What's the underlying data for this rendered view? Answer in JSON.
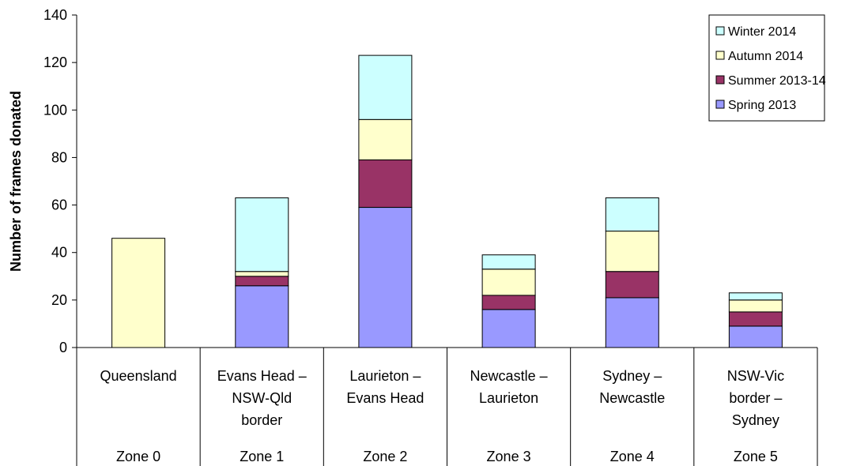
{
  "chart_data": {
    "type": "bar",
    "stacked": true,
    "ylabel": "Number of frames donated",
    "ylim": [
      0,
      140
    ],
    "y_ticks": [
      "0",
      "20",
      "40",
      "60",
      "80",
      "100",
      "120",
      "140"
    ],
    "categories": [
      {
        "lines": [
          "Queensland"
        ],
        "zone": "Zone 0"
      },
      {
        "lines": [
          "Evans Head –",
          "NSW-Qld",
          "border"
        ],
        "zone": "Zone 1"
      },
      {
        "lines": [
          "Laurieton –",
          "Evans Head"
        ],
        "zone": "Zone 2"
      },
      {
        "lines": [
          "Newcastle –",
          "Laurieton"
        ],
        "zone": "Zone 3"
      },
      {
        "lines": [
          "Sydney –",
          "Newcastle"
        ],
        "zone": "Zone 4"
      },
      {
        "lines": [
          "NSW-Vic",
          "border –",
          "Sydney"
        ],
        "zone": "Zone 5"
      }
    ],
    "series": [
      {
        "name": "Spring 2013",
        "color": "#9999ff",
        "values": [
          0,
          26,
          59,
          16,
          21,
          9
        ]
      },
      {
        "name": "Summer 2013-14",
        "color": "#993366",
        "values": [
          0,
          4,
          20,
          6,
          11,
          6
        ]
      },
      {
        "name": "Autumn 2014",
        "color": "#ffffcc",
        "values": [
          46,
          2,
          17,
          11,
          17,
          5
        ]
      },
      {
        "name": "Winter 2014",
        "color": "#ccffff",
        "values": [
          0,
          31,
          27,
          6,
          14,
          3
        ]
      }
    ],
    "legend": {
      "position": "top-right",
      "order": [
        "Winter 2014",
        "Autumn 2014",
        "Summer 2013-14",
        "Spring 2013"
      ]
    },
    "grid": false
  }
}
